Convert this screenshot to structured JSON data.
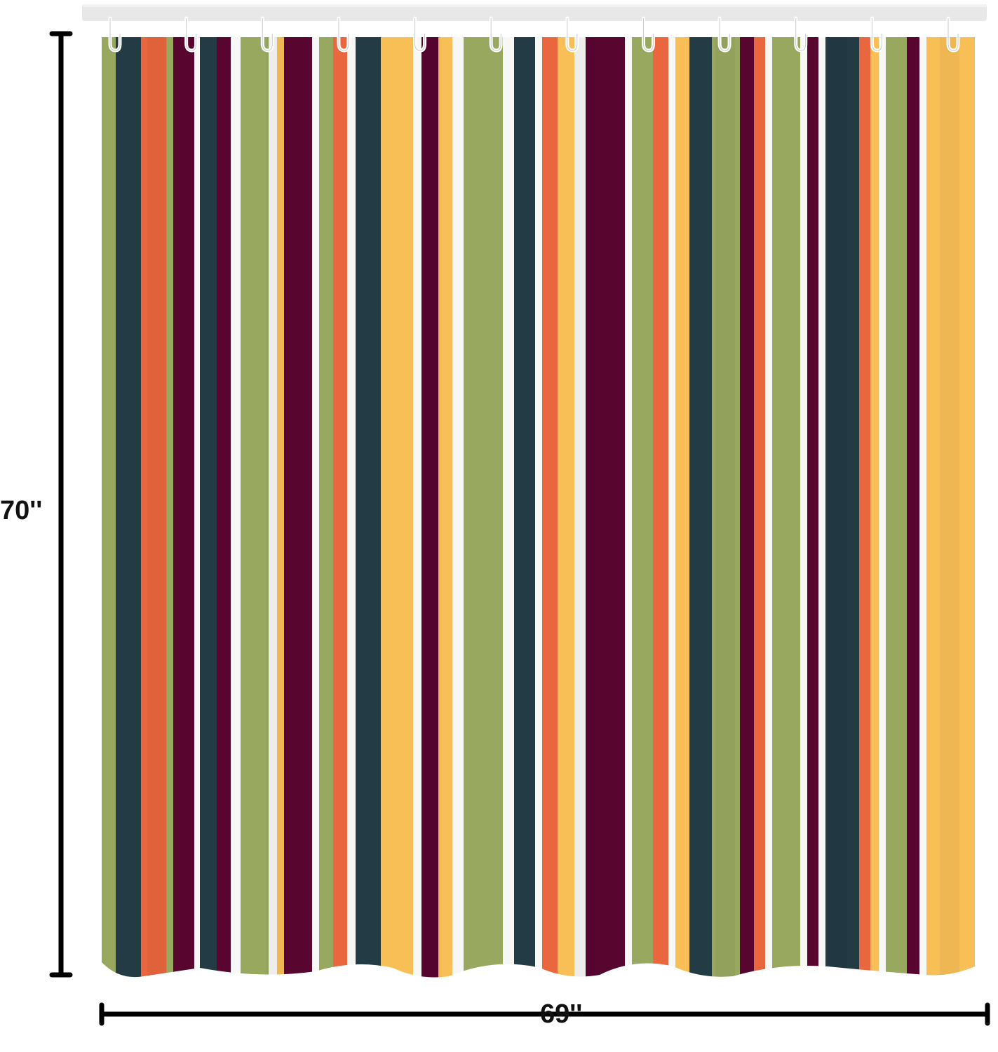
{
  "product": {
    "type": "striped shower curtain",
    "colors": {
      "green": "#98A85F",
      "navy": "#233B45",
      "orange": "#E9663E",
      "maroon": "#580530",
      "white": "#F7F7F5",
      "yellow": "#F8BF57",
      "rod": "#E8E8E8",
      "hook": "#FFFFFF"
    },
    "stripe_sequence": [
      "green",
      "navy",
      "orange",
      "green",
      "maroon",
      "white",
      "navy",
      "maroon",
      "white",
      "green",
      "white",
      "yellow",
      "maroon",
      "white",
      "green",
      "orange",
      "white",
      "navy",
      "yellow",
      "white",
      "maroon",
      "yellow",
      "white",
      "green",
      "white",
      "navy",
      "white",
      "orange",
      "yellow",
      "white",
      "maroon",
      "white",
      "green",
      "orange",
      "white",
      "yellow",
      "navy",
      "green",
      "maroon",
      "orange",
      "white",
      "green",
      "white",
      "maroon",
      "white",
      "navy",
      "orange",
      "yellow",
      "white",
      "green",
      "maroon",
      "white",
      "yellow"
    ],
    "hook_count": 12
  },
  "dimensions": {
    "height_label": "70''",
    "width_label": "69''"
  }
}
